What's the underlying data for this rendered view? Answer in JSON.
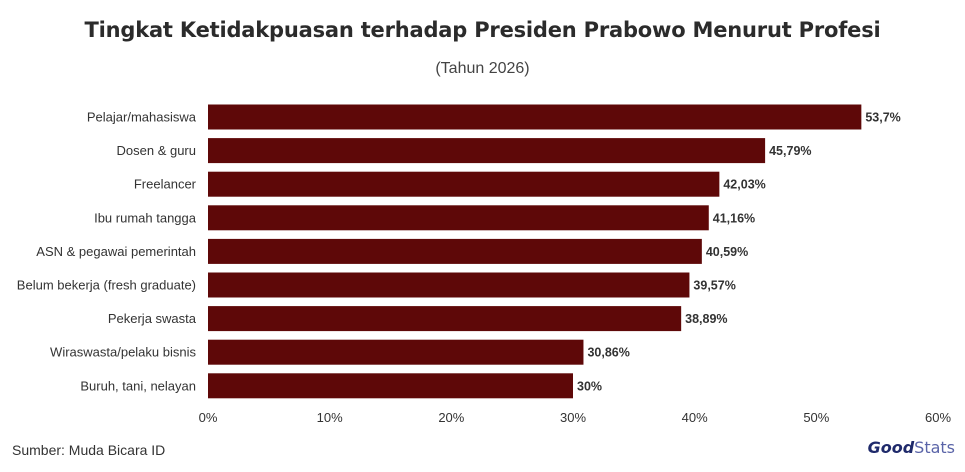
{
  "chart_data": {
    "type": "bar",
    "orientation": "horizontal",
    "title": "Tingkat Ketidakpuasan terhadap Presiden Prabowo Menurut Profesi",
    "subtitle": "(Tahun 2026)",
    "categories": [
      "Pelajar/mahasiswa",
      "Dosen &  guru",
      "Freelancer",
      "Ibu rumah tangga",
      "ASN & pegawai pemerintah",
      "Belum bekerja (fresh graduate)",
      "Pekerja swasta",
      "Wiraswasta/pelaku bisnis",
      "Buruh, tani, nelayan"
    ],
    "values": [
      53.7,
      45.79,
      42.03,
      41.16,
      40.59,
      39.57,
      38.89,
      30.86,
      30
    ],
    "value_labels": [
      "53,7%",
      "45,79%",
      "42,03%",
      "41,16%",
      "40,59%",
      "39,57%",
      "38,89%",
      "30,86%",
      "30%"
    ],
    "xlim": [
      0,
      60
    ],
    "xticks": [
      0,
      10,
      20,
      30,
      40,
      50,
      60
    ],
    "xtick_labels": [
      "0%",
      "10%",
      "20%",
      "30%",
      "40%",
      "50%",
      "60%"
    ],
    "bar_color": "#5e0808",
    "grid": false,
    "legend": "none"
  },
  "footer": {
    "source": "Sumber: Muda Bicara ID",
    "brand_good": "Good",
    "brand_stats": "Stats"
  }
}
